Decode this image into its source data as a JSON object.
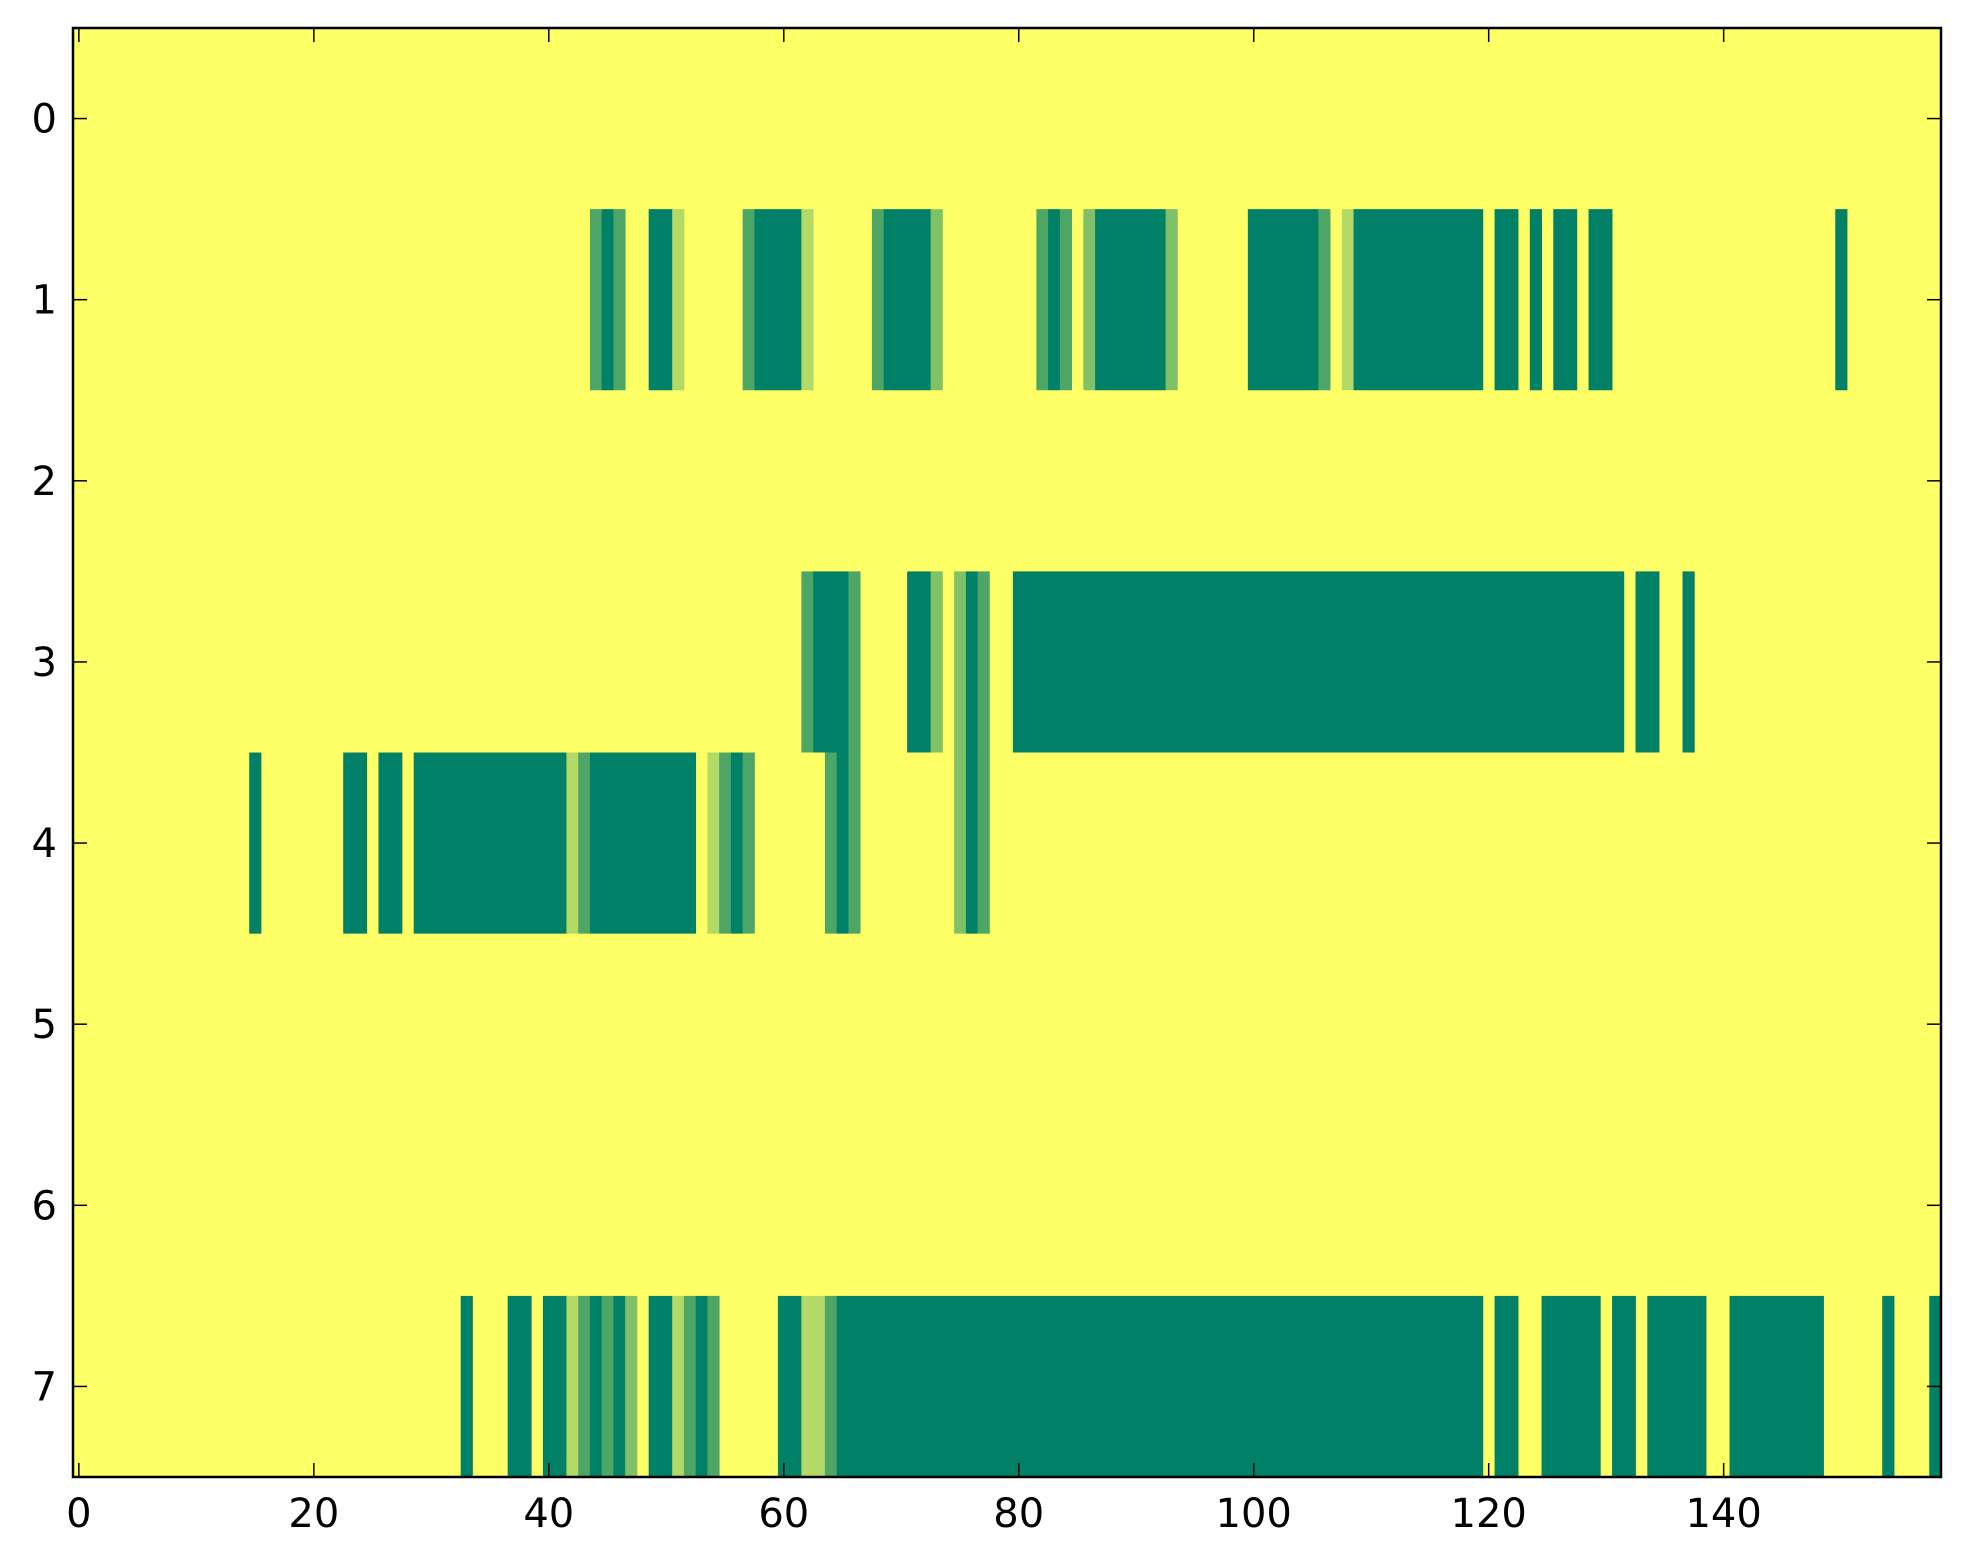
{
  "chart_data": {
    "type": "heatmap",
    "title": "",
    "xlabel": "",
    "ylabel": "",
    "colormap": "summer_r",
    "colors": {
      "low": "#ffff66",
      "high": "#008066",
      "mid_light": "#d6eb66",
      "mid_dark": "#4da066"
    },
    "x_range": [
      -0.5,
      158.5
    ],
    "y_range": [
      -0.5,
      7.5
    ],
    "grid": false,
    "x_ticks": [
      0,
      20,
      40,
      60,
      80,
      100,
      120,
      140
    ],
    "y_ticks": [
      0,
      1,
      2,
      3,
      4,
      5,
      6,
      7
    ],
    "rows": [
      {
        "row": 0,
        "segments": []
      },
      {
        "row": 1,
        "segments": [
          {
            "start": 44,
            "end": 44,
            "value": 0.7
          },
          {
            "start": 45,
            "end": 45,
            "value": 1.0
          },
          {
            "start": 46,
            "end": 46,
            "value": 0.7
          },
          {
            "start": 49,
            "end": 50,
            "value": 1.0
          },
          {
            "start": 51,
            "end": 51,
            "value": 0.3
          },
          {
            "start": 57,
            "end": 57,
            "value": 0.7
          },
          {
            "start": 58,
            "end": 61,
            "value": 1.0
          },
          {
            "start": 62,
            "end": 62,
            "value": 0.3
          },
          {
            "start": 68,
            "end": 68,
            "value": 0.7
          },
          {
            "start": 69,
            "end": 72,
            "value": 1.0
          },
          {
            "start": 73,
            "end": 73,
            "value": 0.5
          },
          {
            "start": 82,
            "end": 82,
            "value": 0.7
          },
          {
            "start": 83,
            "end": 83,
            "value": 1.0
          },
          {
            "start": 84,
            "end": 84,
            "value": 0.7
          },
          {
            "start": 86,
            "end": 86,
            "value": 0.5
          },
          {
            "start": 87,
            "end": 92,
            "value": 1.0
          },
          {
            "start": 93,
            "end": 93,
            "value": 0.5
          },
          {
            "start": 100,
            "end": 105,
            "value": 1.0
          },
          {
            "start": 106,
            "end": 106,
            "value": 0.7
          },
          {
            "start": 108,
            "end": 108,
            "value": 0.3
          },
          {
            "start": 109,
            "end": 119,
            "value": 1.0
          },
          {
            "start": 121,
            "end": 122,
            "value": 1.0
          },
          {
            "start": 124,
            "end": 124,
            "value": 1.0
          },
          {
            "start": 126,
            "end": 127,
            "value": 1.0
          },
          {
            "start": 129,
            "end": 130,
            "value": 1.0
          },
          {
            "start": 150,
            "end": 150,
            "value": 1.0
          }
        ]
      },
      {
        "row": 2,
        "segments": []
      },
      {
        "row": 3,
        "segments": [
          {
            "start": 62,
            "end": 62,
            "value": 0.7
          },
          {
            "start": 63,
            "end": 65,
            "value": 1.0
          },
          {
            "start": 66,
            "end": 66,
            "value": 0.7
          },
          {
            "start": 71,
            "end": 72,
            "value": 1.0
          },
          {
            "start": 73,
            "end": 73,
            "value": 0.5
          },
          {
            "start": 75,
            "end": 75,
            "value": 0.5
          },
          {
            "start": 76,
            "end": 76,
            "value": 1.0
          },
          {
            "start": 77,
            "end": 77,
            "value": 0.7
          },
          {
            "start": 80,
            "end": 131,
            "value": 1.0
          },
          {
            "start": 133,
            "end": 134,
            "value": 1.0
          },
          {
            "start": 137,
            "end": 137,
            "value": 1.0
          }
        ]
      },
      {
        "row": 4,
        "segments": [
          {
            "start": 15,
            "end": 15,
            "value": 1.0
          },
          {
            "start": 23,
            "end": 24,
            "value": 1.0
          },
          {
            "start": 26,
            "end": 27,
            "value": 1.0
          },
          {
            "start": 29,
            "end": 41,
            "value": 1.0
          },
          {
            "start": 42,
            "end": 42,
            "value": 0.3
          },
          {
            "start": 43,
            "end": 43,
            "value": 0.7
          },
          {
            "start": 44,
            "end": 52,
            "value": 1.0
          },
          {
            "start": 54,
            "end": 54,
            "value": 0.3
          },
          {
            "start": 55,
            "end": 55,
            "value": 0.7
          },
          {
            "start": 56,
            "end": 56,
            "value": 1.0
          },
          {
            "start": 57,
            "end": 57,
            "value": 0.7
          },
          {
            "start": 64,
            "end": 64,
            "value": 0.7
          },
          {
            "start": 65,
            "end": 65,
            "value": 1.0
          },
          {
            "start": 66,
            "end": 66,
            "value": 0.7
          },
          {
            "start": 75,
            "end": 75,
            "value": 0.5
          },
          {
            "start": 76,
            "end": 76,
            "value": 1.0
          },
          {
            "start": 77,
            "end": 77,
            "value": 0.7
          }
        ]
      },
      {
        "row": 5,
        "segments": []
      },
      {
        "row": 6,
        "segments": []
      },
      {
        "row": 7,
        "segments": [
          {
            "start": 33,
            "end": 33,
            "value": 1.0
          },
          {
            "start": 37,
            "end": 38,
            "value": 1.0
          },
          {
            "start": 40,
            "end": 41,
            "value": 1.0
          },
          {
            "start": 42,
            "end": 42,
            "value": 0.3
          },
          {
            "start": 43,
            "end": 43,
            "value": 0.7
          },
          {
            "start": 44,
            "end": 44,
            "value": 1.0
          },
          {
            "start": 45,
            "end": 45,
            "value": 0.7
          },
          {
            "start": 46,
            "end": 46,
            "value": 1.0
          },
          {
            "start": 47,
            "end": 47,
            "value": 0.5
          },
          {
            "start": 49,
            "end": 50,
            "value": 1.0
          },
          {
            "start": 51,
            "end": 51,
            "value": 0.3
          },
          {
            "start": 52,
            "end": 52,
            "value": 0.7
          },
          {
            "start": 53,
            "end": 53,
            "value": 1.0
          },
          {
            "start": 54,
            "end": 54,
            "value": 0.7
          },
          {
            "start": 60,
            "end": 61,
            "value": 1.0
          },
          {
            "start": 62,
            "end": 62,
            "value": 0.3
          },
          {
            "start": 63,
            "end": 63,
            "value": 0.3
          },
          {
            "start": 64,
            "end": 64,
            "value": 0.7
          },
          {
            "start": 65,
            "end": 119,
            "value": 1.0
          },
          {
            "start": 121,
            "end": 122,
            "value": 1.0
          },
          {
            "start": 125,
            "end": 129,
            "value": 1.0
          },
          {
            "start": 131,
            "end": 132,
            "value": 1.0
          },
          {
            "start": 134,
            "end": 138,
            "value": 1.0
          },
          {
            "start": 141,
            "end": 148,
            "value": 1.0
          },
          {
            "start": 154,
            "end": 154,
            "value": 1.0
          },
          {
            "start": 158,
            "end": 158,
            "value": 1.0
          }
        ]
      }
    ]
  }
}
